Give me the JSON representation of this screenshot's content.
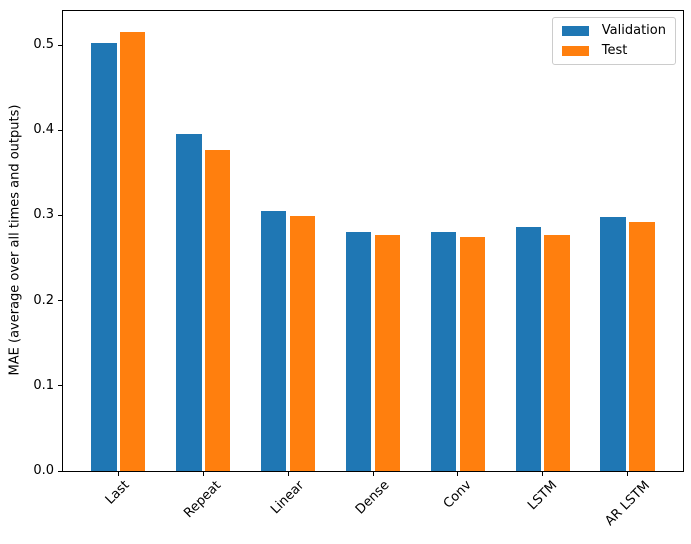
{
  "figure": {
    "background": "#ffffff",
    "axis_color": "#000000",
    "text_color": "#000000"
  },
  "chart_data": {
    "type": "bar",
    "title": "",
    "xlabel": "",
    "ylabel": "MAE (average over all times and outputs)",
    "categories": [
      "Last",
      "Repeat",
      "Linear",
      "Dense",
      "Conv",
      "LSTM",
      "AR LSTM"
    ],
    "series": [
      {
        "name": "Validation",
        "color": "#1f77b4",
        "values": [
          0.5027,
          0.396,
          0.3057,
          0.2811,
          0.2802,
          0.2859,
          0.298
        ]
      },
      {
        "name": "Test",
        "color": "#ff7f0e",
        "values": [
          0.5158,
          0.3774,
          0.2992,
          0.2766,
          0.2745,
          0.2767,
          0.2918
        ]
      }
    ],
    "ylim": [
      0,
      0.54
    ],
    "yticks": [
      "0.0",
      "0.1",
      "0.2",
      "0.3",
      "0.4",
      "0.5"
    ],
    "xtick_rotation": 45,
    "grid": false,
    "legend": {
      "position": "upper right",
      "entries": [
        "Validation",
        "Test"
      ],
      "border_color": "#cccccc"
    },
    "bar_width": 0.3,
    "bar_offset": 0.17,
    "x_margin": 0.652
  }
}
